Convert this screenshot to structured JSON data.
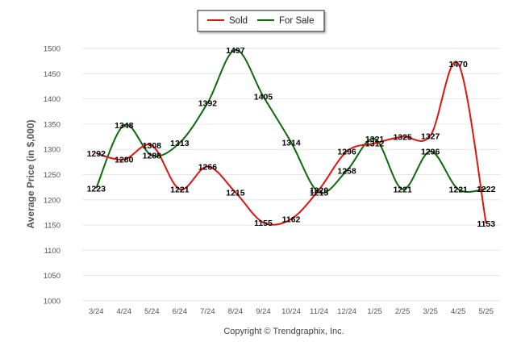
{
  "chart_data": {
    "type": "line",
    "categories": [
      "3/24",
      "4/24",
      "5/24",
      "6/24",
      "7/24",
      "8/24",
      "9/24",
      "10/24",
      "11/24",
      "12/24",
      "1/25",
      "2/25",
      "3/25",
      "4/25",
      "5/25"
    ],
    "series": [
      {
        "name": "Sold",
        "color": "#e0140f",
        "values": [
          1292,
          1280,
          1308,
          1221,
          1266,
          1215,
          1155,
          1162,
          1220,
          1296,
          1312,
          1325,
          1327,
          1470,
          1153
        ]
      },
      {
        "name": "For Sale",
        "color": "#0b6b0b",
        "values": [
          1223,
          1348,
          1288,
          1313,
          1392,
          1497,
          1405,
          1314,
          1215,
          1258,
          1321,
          1221,
          1296,
          1221,
          1222
        ]
      }
    ],
    "ylabel": "Average Price (in $,000)",
    "xlabel": "",
    "ylim": [
      1000,
      1500
    ],
    "yticks": [
      1000,
      1050,
      1100,
      1150,
      1200,
      1250,
      1300,
      1350,
      1400,
      1450,
      1500
    ],
    "grid": true,
    "legend": "top-center",
    "credit": "Copyright © Trendgraphix, Inc."
  }
}
